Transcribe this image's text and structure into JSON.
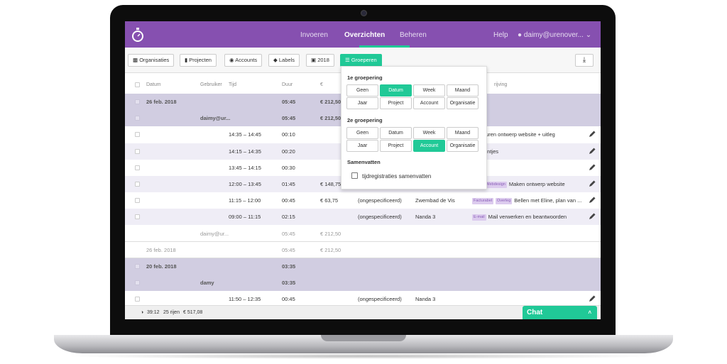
{
  "header": {
    "nav": [
      "Invoeren",
      "Overzichten",
      "Beheren"
    ],
    "active": "Overzichten",
    "help": "Help",
    "user": "daimy@urenover...",
    "accent": "#8650b0"
  },
  "toolbar": {
    "organisaties": "Organisaties",
    "projecten": "Projecten",
    "accounts": "Accounts",
    "labels": "Labels",
    "year": "2018",
    "groeperen": "Groeperen"
  },
  "columns": {
    "datum": "Datum",
    "gebruiker": "Gebruiker",
    "tijd": "Tijd",
    "duur": "Duur",
    "euro": "€",
    "omschrijving": "rijving"
  },
  "rows": [
    {
      "type": "group",
      "datum": "26 feb. 2018",
      "duur": "05:45",
      "bedrag": "€ 212,50"
    },
    {
      "type": "group",
      "gebruiker": "daimy@ur...",
      "duur": "05:45",
      "bedrag": "€ 212,50"
    },
    {
      "type": "entry",
      "tijd": "14:35 – 14:45",
      "duur": "00:10",
      "desc": "turen ontwerp website + uitleg"
    },
    {
      "type": "entry",
      "tijd": "14:15 – 14:35",
      "duur": "00:20",
      "desc": "ontjes"
    },
    {
      "type": "entry",
      "tijd": "13:45 – 14:15",
      "duur": "00:30"
    },
    {
      "type": "entry",
      "tijd": "12:00 – 13:45",
      "duur": "01:45",
      "bedrag": "€ 148,75",
      "tags": [
        "abel",
        "Webdesign"
      ],
      "desc": "Maken ontwerp website"
    },
    {
      "type": "entry",
      "tijd": "11:15 – 12:00",
      "duur": "00:45",
      "bedrag": "€ 63,75",
      "project": "(ongespecificeerd)",
      "klant": "Zwembad de Vis",
      "tags": [
        "Facturabel",
        "Overleg"
      ],
      "desc": "Bellen met Eline, plan van ..."
    },
    {
      "type": "entry",
      "tijd": "09:00 – 11:15",
      "duur": "02:15",
      "project": "(ongespecificeerd)",
      "klant": "Nanda 3",
      "tags": [
        "E-mail"
      ],
      "desc": "Mail verwerken en beantwoorden"
    },
    {
      "type": "subtotal",
      "gebruiker": "daimy@ur...",
      "duur": "05:45",
      "bedrag": "€ 212,50"
    },
    {
      "type": "subtotal",
      "datum": "26 feb. 2018",
      "duur": "05:45",
      "bedrag": "€ 212,50"
    },
    {
      "type": "group",
      "datum": "20 feb. 2018",
      "duur": "03:35"
    },
    {
      "type": "group",
      "gebruiker": "damy",
      "duur": "03:35"
    },
    {
      "type": "entry",
      "tijd": "11:50 – 12:35",
      "duur": "00:45",
      "project": "(ongespecificeerd)",
      "klant": "Nanda 3"
    }
  ],
  "dropdown": {
    "first_title": "1e groepering",
    "second_title": "2e groepering",
    "options": [
      "Geen",
      "Datum",
      "Week",
      "Maand",
      "Jaar",
      "Project",
      "Account",
      "Organisatie"
    ],
    "first_selected": "Datum",
    "second_selected": "Account",
    "summary_title": "Samenvatten",
    "summary_checkbox": "tijdregistraties samenvatten",
    "summary_checked": false
  },
  "footer": {
    "total": "39:12",
    "rows": "25 rijen",
    "amount": "€ 517,08"
  },
  "chat": {
    "label": "Chat"
  }
}
